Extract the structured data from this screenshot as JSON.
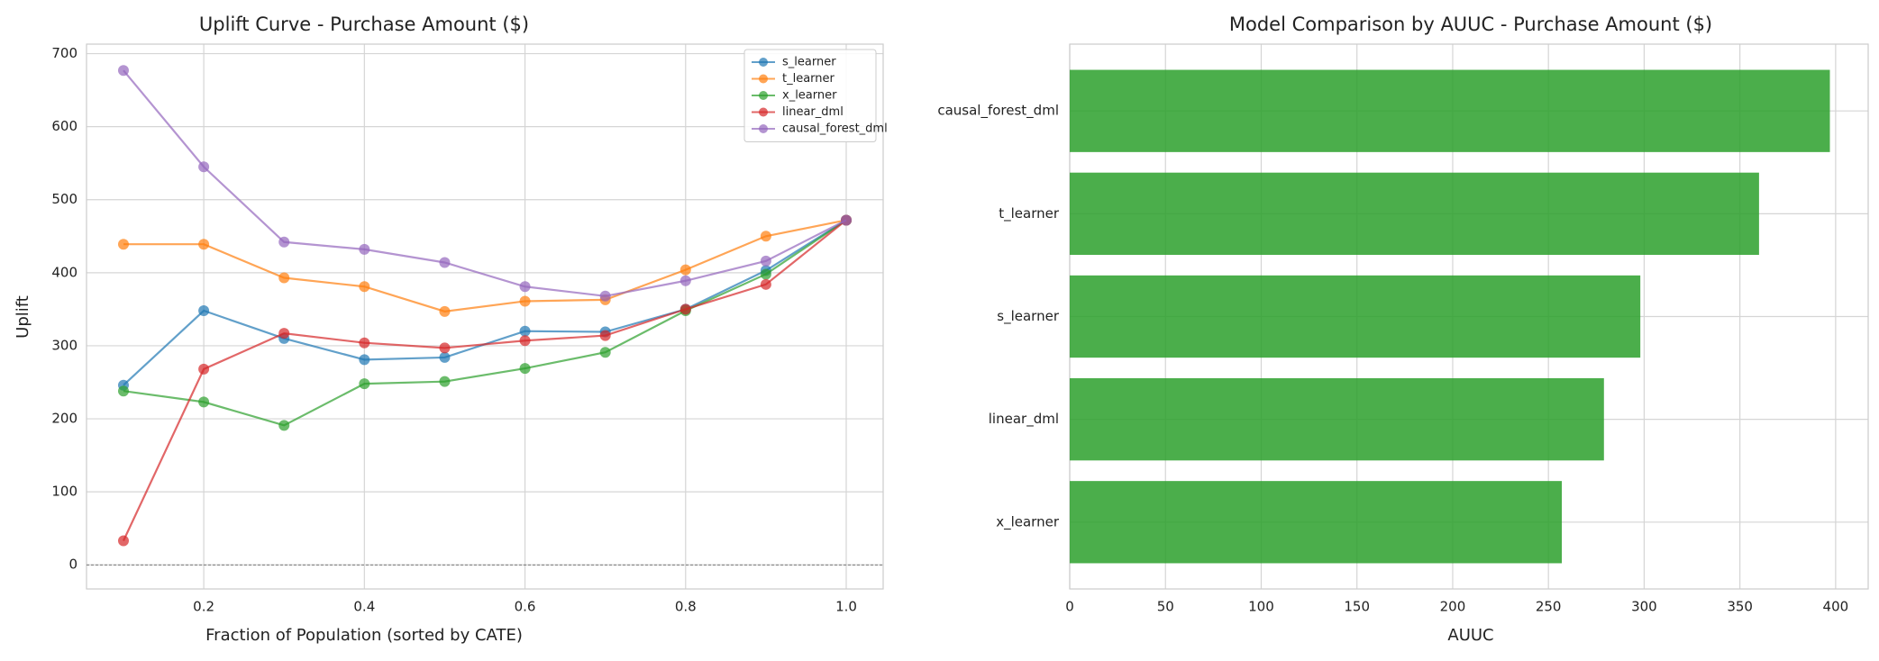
{
  "chart_data": [
    {
      "type": "line",
      "title": "Uplift Curve - Purchase Amount ($)",
      "x_label": "Fraction of Population (sorted by CATE)",
      "y_label": "Uplift",
      "x": [
        0.1,
        0.2,
        0.3,
        0.4,
        0.5,
        0.6,
        0.7,
        0.8,
        0.9,
        1.0
      ],
      "series": [
        {
          "name": "s_learner",
          "color": "#1f77b4",
          "values": [
            246,
            348,
            310,
            281,
            284,
            320,
            319,
            350,
            403,
            472
          ]
        },
        {
          "name": "t_learner",
          "color": "#ff7f0e",
          "values": [
            439,
            439,
            393,
            381,
            347,
            361,
            363,
            404,
            450,
            472
          ]
        },
        {
          "name": "x_learner",
          "color": "#2ca02c",
          "values": [
            238,
            223,
            191,
            248,
            251,
            269,
            291,
            348,
            398,
            472
          ]
        },
        {
          "name": "linear_dml",
          "color": "#d62728",
          "values": [
            33,
            268,
            317,
            304,
            297,
            307,
            314,
            350,
            384,
            472
          ]
        },
        {
          "name": "causal_forest_dml",
          "color": "#9467bd",
          "values": [
            677,
            545,
            442,
            432,
            414,
            381,
            368,
            389,
            416,
            472
          ]
        }
      ],
      "xlim": [
        0.054,
        1.046
      ],
      "xticks": [
        0.2,
        0.4,
        0.6,
        0.8,
        {
          "value": 1.0,
          "label": "1.0"
        }
      ],
      "ylim": [
        -33,
        713
      ],
      "yticks": [
        0,
        100,
        200,
        300,
        400,
        500,
        600,
        700
      ],
      "hline": 0,
      "grid": true,
      "legend": "upper right"
    },
    {
      "type": "barh",
      "title": "Model Comparison by AUUC - Purchase Amount ($)",
      "x_label": "AUUC",
      "categories": [
        "causal_forest_dml",
        "t_learner",
        "s_learner",
        "linear_dml",
        "x_learner"
      ],
      "values": [
        397,
        360,
        298,
        279,
        257
      ],
      "color": "#2ca02c",
      "xlim": [
        0,
        417
      ],
      "xticks": [
        0,
        50,
        100,
        150,
        200,
        250,
        300,
        350,
        400
      ],
      "grid": true
    }
  ]
}
